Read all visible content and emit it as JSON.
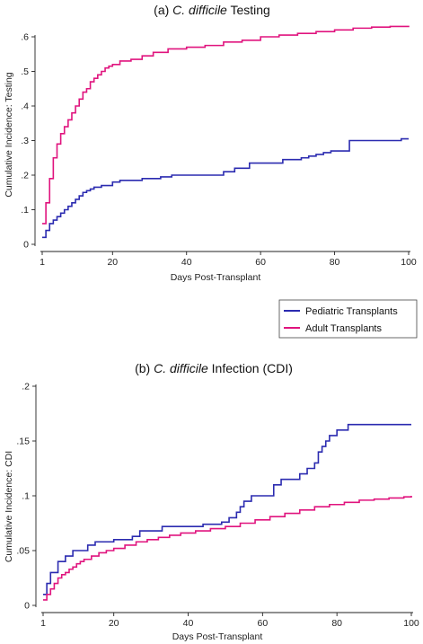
{
  "colors": {
    "pediatric": "#2b2bb0",
    "adult": "#e0147e",
    "axis": "#222222",
    "legend_border": "#444444"
  },
  "legend": {
    "placement": "right, between panels",
    "entries": [
      "Pediatric Transplants",
      "Adult Transplants"
    ]
  },
  "chart_data": [
    {
      "type": "line",
      "step": true,
      "title_prefix": "(a) ",
      "title_italic": "C. difficile",
      "title_suffix": " Testing",
      "xlabel": "Days Post-Transplant",
      "ylabel": "Cumulative Incidence: Testing",
      "xlim": [
        1,
        100
      ],
      "ylim": [
        0,
        0.6
      ],
      "xticks": [
        1,
        20,
        40,
        60,
        80,
        100
      ],
      "xtick_labels": [
        "1",
        "20",
        "40",
        "60",
        "80",
        "100"
      ],
      "yticks": [
        0,
        0.1,
        0.2,
        0.3,
        0.4,
        0.5,
        0.6
      ],
      "ytick_labels": [
        "0",
        ".1",
        ".2",
        ".3",
        ".4",
        ".5",
        ".6"
      ],
      "series": [
        {
          "name": "Pediatric Transplants",
          "x": [
            1,
            2,
            3,
            4,
            5,
            6,
            7,
            8,
            9,
            10,
            11,
            12,
            13,
            14,
            15,
            17,
            20,
            22,
            28,
            33,
            36,
            50,
            53,
            57,
            66,
            71,
            73,
            75,
            77,
            79,
            84,
            98
          ],
          "y": [
            0.02,
            0.04,
            0.06,
            0.07,
            0.08,
            0.09,
            0.1,
            0.11,
            0.12,
            0.13,
            0.14,
            0.15,
            0.155,
            0.16,
            0.165,
            0.17,
            0.18,
            0.185,
            0.19,
            0.195,
            0.2,
            0.21,
            0.22,
            0.235,
            0.245,
            0.25,
            0.255,
            0.26,
            0.265,
            0.27,
            0.3,
            0.305
          ]
        },
        {
          "name": "Adult Transplants",
          "x": [
            1,
            2,
            3,
            4,
            5,
            6,
            7,
            8,
            9,
            10,
            11,
            12,
            13,
            14,
            15,
            16,
            17,
            18,
            19,
            20,
            22,
            25,
            28,
            31,
            35,
            40,
            45,
            50,
            55,
            60,
            65,
            70,
            75,
            80,
            85,
            90,
            95,
            100
          ],
          "y": [
            0.06,
            0.12,
            0.19,
            0.25,
            0.29,
            0.32,
            0.34,
            0.36,
            0.38,
            0.4,
            0.42,
            0.44,
            0.45,
            0.47,
            0.48,
            0.49,
            0.5,
            0.51,
            0.515,
            0.52,
            0.53,
            0.535,
            0.545,
            0.555,
            0.565,
            0.57,
            0.575,
            0.585,
            0.59,
            0.6,
            0.605,
            0.61,
            0.615,
            0.62,
            0.625,
            0.628,
            0.63,
            0.632
          ]
        }
      ]
    },
    {
      "type": "line",
      "step": true,
      "title_prefix": "(b) ",
      "title_italic": "C. difficile",
      "title_suffix": " Infection (CDI)",
      "xlabel": "Days Post-Transplant",
      "ylabel": "Cumulative Incidence: CDI",
      "xlim": [
        1,
        100
      ],
      "ylim": [
        0,
        0.2
      ],
      "xticks": [
        1,
        20,
        40,
        60,
        80,
        100
      ],
      "xtick_labels": [
        "1",
        "20",
        "40",
        "60",
        "80",
        "100"
      ],
      "yticks": [
        0,
        0.05,
        0.1,
        0.15,
        0.2
      ],
      "ytick_labels": [
        "0",
        ".05",
        ".1",
        ".15",
        ".2"
      ],
      "series": [
        {
          "name": "Pediatric Transplants",
          "x": [
            1,
            2,
            3,
            5,
            7,
            9,
            13,
            15,
            20,
            25,
            27,
            33,
            44,
            49,
            51,
            53,
            54,
            55,
            57,
            63,
            65,
            70,
            72,
            74,
            75,
            76,
            77,
            78,
            80,
            83,
            100
          ],
          "y": [
            0.01,
            0.02,
            0.03,
            0.04,
            0.045,
            0.05,
            0.055,
            0.058,
            0.06,
            0.063,
            0.068,
            0.072,
            0.074,
            0.076,
            0.08,
            0.085,
            0.09,
            0.095,
            0.1,
            0.11,
            0.115,
            0.12,
            0.125,
            0.13,
            0.14,
            0.145,
            0.15,
            0.155,
            0.16,
            0.165,
            0.165
          ]
        },
        {
          "name": "Adult Transplants",
          "x": [
            1,
            2,
            3,
            4,
            5,
            6,
            7,
            8,
            9,
            10,
            11,
            12,
            14,
            16,
            18,
            20,
            23,
            26,
            29,
            32,
            35,
            38,
            42,
            46,
            50,
            54,
            58,
            62,
            66,
            70,
            74,
            78,
            82,
            86,
            90,
            94,
            98,
            100
          ],
          "y": [
            0.005,
            0.01,
            0.015,
            0.02,
            0.025,
            0.028,
            0.03,
            0.033,
            0.035,
            0.038,
            0.04,
            0.042,
            0.045,
            0.048,
            0.05,
            0.052,
            0.055,
            0.058,
            0.06,
            0.062,
            0.064,
            0.066,
            0.068,
            0.07,
            0.072,
            0.075,
            0.078,
            0.081,
            0.084,
            0.087,
            0.09,
            0.092,
            0.094,
            0.096,
            0.097,
            0.098,
            0.099,
            0.1
          ]
        }
      ]
    }
  ]
}
